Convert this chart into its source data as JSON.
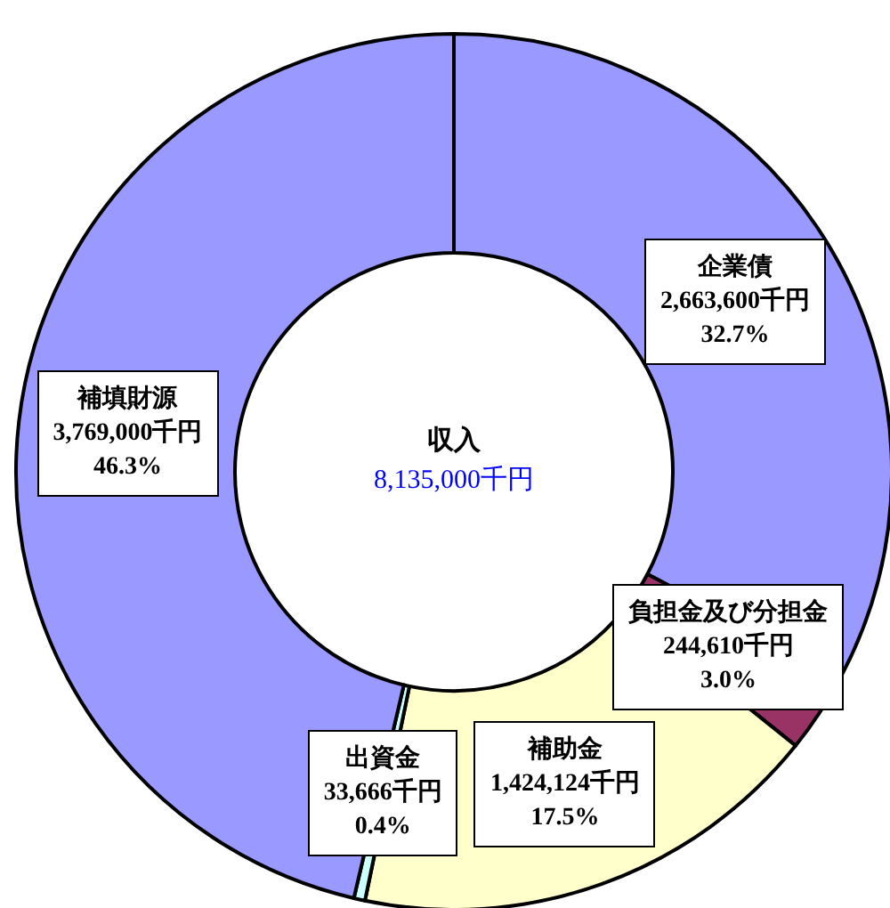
{
  "chart_data": {
    "type": "donut",
    "title": "収入",
    "subtitle": "8,135,000千円",
    "categories": [
      "企業債",
      "負担金及び分担金",
      "補助金",
      "出資金",
      "補填財源"
    ],
    "values": [
      2663600,
      244610,
      1424124,
      33666,
      3769000
    ],
    "colors": [
      "#9999ff",
      "#993366",
      "#ffffcc",
      "#ccffff",
      "#9999ff"
    ],
    "value_labels": [
      "2,663,600千円",
      "244,610千円",
      "1,424,124千円",
      "33,666千円",
      "3,769,000千円"
    ],
    "annotations": [
      {
        "text": "32.7%",
        "x": "企業債"
      },
      {
        "text": "3.0%",
        "x": "負担金及び分担金"
      },
      {
        "text": "17.5%",
        "x": "補助金"
      },
      {
        "text": "0.4%",
        "x": "出資金"
      },
      {
        "text": "46.3%",
        "x": "補填財源"
      }
    ]
  }
}
